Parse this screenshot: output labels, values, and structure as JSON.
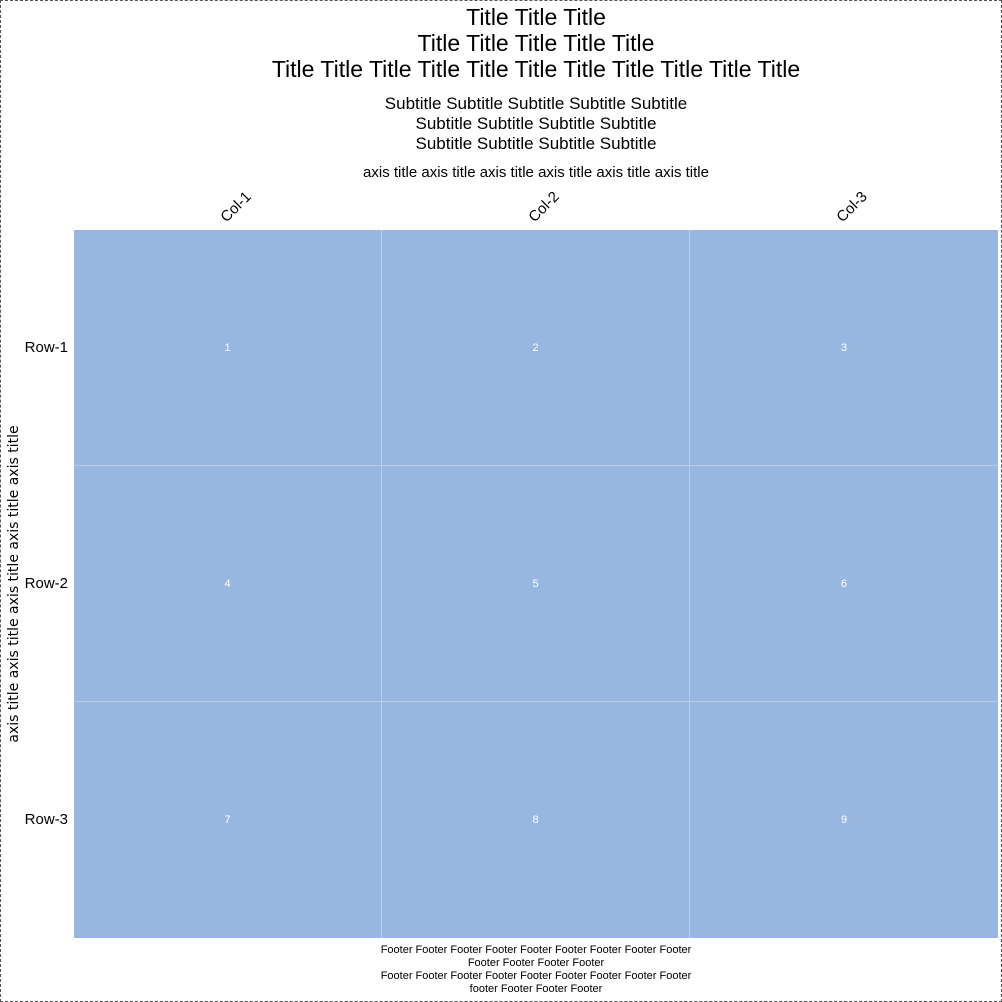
{
  "chart_data": {
    "type": "heatmap",
    "title_lines": [
      "Title Title Title",
      "Title Title Title Title Title",
      "Title Title Title Title Title Title Title Title Title Title Title"
    ],
    "subtitle_lines": [
      "Subtitle Subtitle Subtitle Subtitle Subtitle",
      "Subtitle Subtitle Subtitle Subtitle",
      "Subtitle Subtitle Subtitle Subtitle"
    ],
    "xlabel": "axis title axis title axis title axis title axis title axis title",
    "ylabel": "axis title axis title axis title axis title axis title",
    "columns": [
      "Col-1",
      "Col-2",
      "Col-3"
    ],
    "rows": [
      "Row-1",
      "Row-2",
      "Row-3"
    ],
    "values": [
      [
        1,
        2,
        3
      ],
      [
        4,
        5,
        6
      ],
      [
        7,
        8,
        9
      ]
    ],
    "cell_color": "#97b7e0",
    "gridline_color": "#b9cde9",
    "value_text_color": "#ffffff",
    "footer_lines": [
      "Footer Footer Footer Footer Footer Footer Footer Footer Footer",
      "Footer Footer Footer Footer",
      "Footer Footer Footer Footer Footer Footer Footer Footer Footer",
      "footer Footer Footer Footer"
    ]
  }
}
